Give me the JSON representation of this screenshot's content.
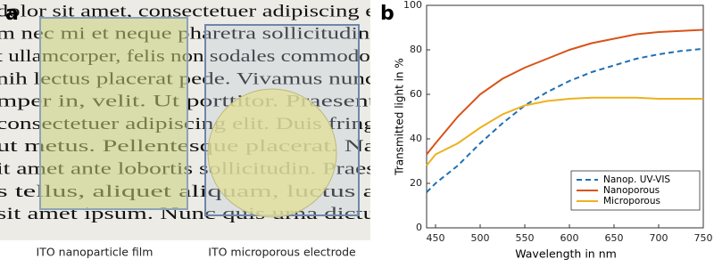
{
  "photo_panel": {
    "label": "a",
    "page_text_lines": [
      "dolor sit amet, consectetuer adipiscing e",
      "m nec mi et neque pharetra sollicitudin.",
      "t ullamcorper, felis non sodales commodo,",
      "nih lectus placerat pede. Vivamus nunc",
      "mper in, velit. Ut porttitor. Praesent",
      "consectetuer adipiscing elit. Duis fring",
      "ut metus. Pellentesque placerat. Na",
      "it amet ante lobortis sollicitudin. Praes",
      "s tellus, aliquet aliquam, luctus a",
      "sit amet ipsum. Nunc quis urna dictu"
    ],
    "captions": [
      "ITO nanoparticle film",
      "ITO microporous electrode"
    ]
  },
  "chart_data": {
    "type": "line",
    "panel_label": "b",
    "x_label": "Wavelength in nm",
    "y_label": "Transmitted light in %",
    "x": [
      440,
      450,
      475,
      500,
      525,
      550,
      575,
      600,
      625,
      650,
      675,
      700,
      725,
      750
    ],
    "series": [
      {
        "name": "Nanop. UV-VIS",
        "color": "#1f6fb4",
        "dashed": true,
        "values": [
          16,
          20,
          28,
          38,
          47,
          55,
          61,
          66,
          70,
          73,
          76,
          78,
          79.5,
          80.5
        ]
      },
      {
        "name": "Nanoporous",
        "color": "#d95319",
        "dashed": false,
        "values": [
          33,
          38,
          50,
          60,
          67,
          72,
          76,
          80,
          83,
          85,
          87,
          88,
          88.5,
          89
        ]
      },
      {
        "name": "Microporous",
        "color": "#edb120",
        "dashed": false,
        "values": [
          28,
          33,
          38,
          45,
          51,
          55,
          57,
          58,
          58.5,
          58.5,
          58.5,
          58,
          58,
          58
        ]
      }
    ],
    "xlim": [
      440,
      750
    ],
    "xticks": [
      450,
      500,
      550,
      600,
      650,
      700,
      750
    ],
    "ylim": [
      0,
      100
    ],
    "yticks": [
      0,
      20,
      40,
      60,
      80,
      100
    ],
    "grid": false,
    "legend": "lower right"
  }
}
